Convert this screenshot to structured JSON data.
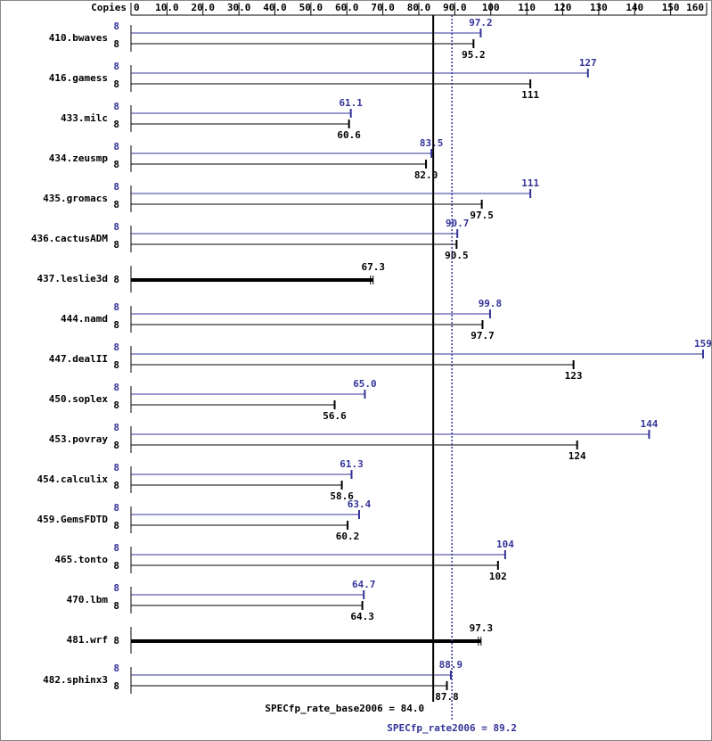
{
  "chart_data": {
    "type": "spec-bar",
    "axis_label": "Copies",
    "categories": [
      "410.bwaves",
      "416.gamess",
      "433.milc",
      "434.zeusmp",
      "435.gromacs",
      "436.cactusADM",
      "437.leslie3d",
      "444.namd",
      "447.dealII",
      "450.soplex",
      "453.povray",
      "454.calculix",
      "459.GemsFDTD",
      "465.tonto",
      "470.lbm",
      "481.wrf",
      "482.sphinx3"
    ],
    "series": [
      {
        "color": "#333399",
        "values": [
          97.2,
          127,
          61.1,
          83.5,
          111,
          90.7,
          null,
          99.8,
          159,
          65.0,
          144,
          61.3,
          63.4,
          104,
          64.7,
          null,
          88.9
        ],
        "value_labels": [
          "97.2",
          "127",
          "61.1",
          "83.5",
          "111",
          "90.7",
          null,
          "99.8",
          "159",
          "65.0",
          "144",
          "61.3",
          "63.4",
          "104",
          "64.7",
          null,
          "88.9"
        ],
        "copies": [
          8,
          8,
          8,
          8,
          8,
          8,
          null,
          8,
          8,
          8,
          8,
          8,
          8,
          8,
          8,
          null,
          8
        ]
      },
      {
        "color": "#000000",
        "values": [
          95.2,
          111,
          60.6,
          82.0,
          97.5,
          90.5,
          67.3,
          97.7,
          123,
          56.6,
          124,
          58.6,
          60.2,
          102,
          64.3,
          97.3,
          87.8
        ],
        "value_labels": [
          "95.2",
          "111",
          "60.6",
          "82.0",
          "97.5",
          "90.5",
          "67.3",
          "97.7",
          "123",
          "56.6",
          "124",
          "58.6",
          "60.2",
          "102",
          "64.3",
          "97.3",
          "87.8"
        ],
        "copies": [
          8,
          8,
          8,
          8,
          8,
          8,
          8,
          8,
          8,
          8,
          8,
          8,
          8,
          8,
          8,
          8,
          8
        ]
      }
    ],
    "xlim": [
      0,
      160
    ],
    "xticks": [
      0,
      {
        "value": 10,
        "label": "10.0"
      },
      {
        "value": 20,
        "label": "20.0"
      },
      {
        "value": 30,
        "label": "30.0"
      },
      {
        "value": 40,
        "label": "40.0"
      },
      {
        "value": 50,
        "label": "50.0"
      },
      {
        "value": 60,
        "label": "60.0"
      },
      {
        "value": 70,
        "label": "70.0"
      },
      {
        "value": 80,
        "label": "80.0"
      },
      {
        "value": 90,
        "label": "90.0"
      },
      100,
      110,
      120,
      130,
      140,
      150,
      160
    ],
    "reference_lines": [
      {
        "label": "SPECfp_rate_base2006 = 84.0",
        "value": 84.0,
        "color": "#000000"
      },
      {
        "label": "SPECfp_rate2006 = 89.2",
        "value": 89.2,
        "color": "#333399"
      }
    ]
  }
}
